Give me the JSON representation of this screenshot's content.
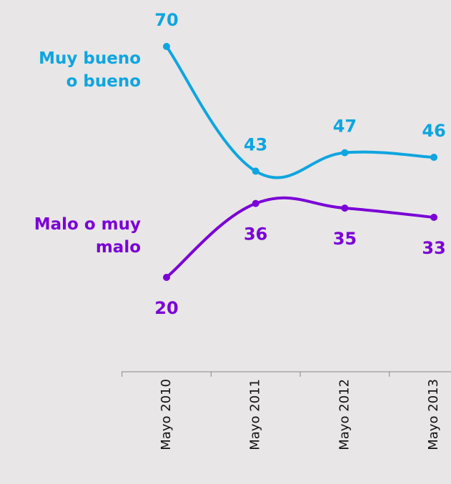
{
  "chart_data": {
    "type": "line",
    "categories": [
      "Mayo 2010",
      "Mayo 2011",
      "Mayo 2012",
      "Mayo 2013"
    ],
    "series": [
      {
        "name": "Muy bueno\no bueno",
        "color": "#0ea5e0",
        "values": [
          70,
          43,
          47,
          46
        ]
      },
      {
        "name": "Malo o muy\nmalo",
        "color": "#7a00d6",
        "values": [
          20,
          36,
          35,
          33
        ]
      }
    ]
  }
}
